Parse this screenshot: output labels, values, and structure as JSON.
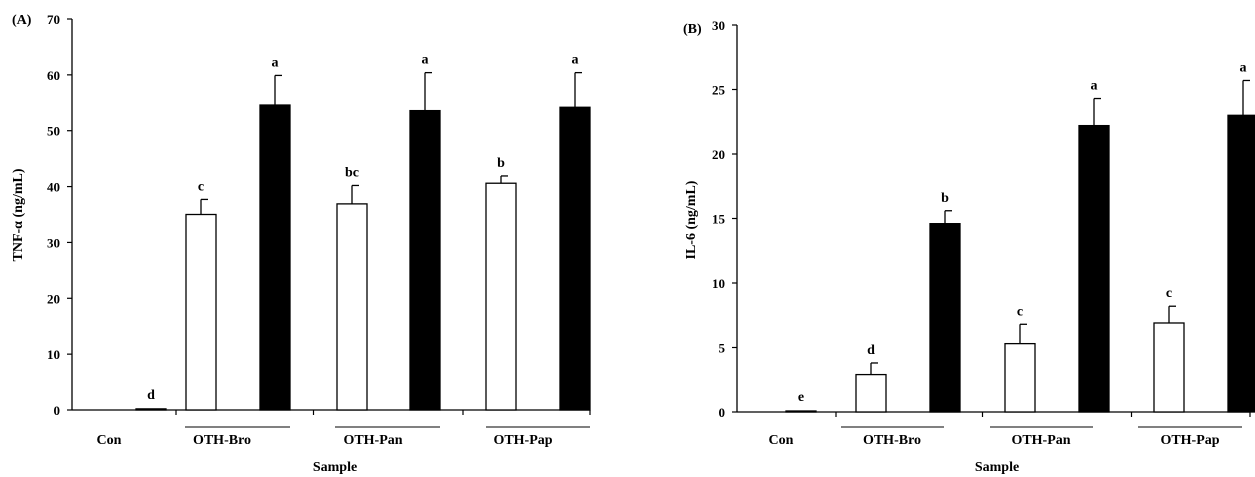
{
  "chart_data": [
    {
      "type": "bar",
      "panel_label": "(A)",
      "ylabel": "TNF-α (ng/mL)",
      "xlabel": "Sample",
      "ylim": [
        0,
        70
      ],
      "yticks": [
        0,
        10,
        20,
        30,
        40,
        50,
        60,
        70
      ],
      "categories": [
        "Con",
        "OTH-Bro",
        "OTH-Pan",
        "OTH-Pap"
      ],
      "series": [
        {
          "fill": "#ffffff",
          "values": [
            0.2,
            35.0,
            36.9,
            40.6
          ],
          "errors": [
            0,
            2.7,
            3.3,
            1.3
          ],
          "letters": [
            "d",
            "c",
            "bc",
            "b"
          ]
        },
        {
          "fill": "#000000",
          "values": [
            null,
            54.6,
            53.6,
            54.2
          ],
          "errors": [
            null,
            5.3,
            6.8,
            6.2
          ],
          "letters": [
            null,
            "a",
            "a",
            "a"
          ]
        }
      ],
      "grid": false,
      "legend": "none"
    },
    {
      "type": "bar",
      "panel_label": "(B)",
      "ylabel": "IL-6 (ng/mL)",
      "xlabel": "Sample",
      "ylim": [
        0,
        30
      ],
      "yticks": [
        0,
        5,
        10,
        15,
        20,
        25,
        30
      ],
      "categories": [
        "Con",
        "OTH-Bro",
        "OTH-Pan",
        "OTH-Pap"
      ],
      "series": [
        {
          "fill": "#ffffff",
          "values": [
            0,
            2.9,
            5.3,
            6.9
          ],
          "errors": [
            0,
            0.9,
            1.5,
            1.3
          ],
          "letters": [
            "e",
            "d",
            "c",
            "c"
          ]
        },
        {
          "fill": "#000000",
          "values": [
            null,
            14.6,
            22.2,
            23.0
          ],
          "errors": [
            null,
            1.0,
            2.1,
            2.7
          ],
          "letters": [
            null,
            "b",
            "a",
            "a"
          ]
        }
      ],
      "grid": false,
      "legend": "none"
    }
  ]
}
